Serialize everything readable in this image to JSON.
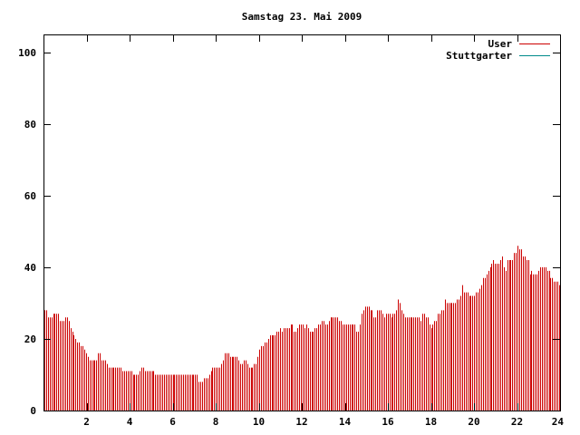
{
  "chart_data": {
    "type": "bar",
    "title": "Samstag 23. Mai 2009",
    "xlabel": "",
    "ylabel": "",
    "xlim": [
      0,
      24
    ],
    "ylim": [
      0,
      105
    ],
    "x_ticks": [
      2,
      4,
      6,
      8,
      10,
      12,
      14,
      16,
      18,
      20,
      22,
      24
    ],
    "y_ticks": [
      0,
      20,
      40,
      60,
      80,
      100
    ],
    "grid": false,
    "legend_position": "top-right",
    "series": [
      {
        "name": "User",
        "color": "#cc0000",
        "values": [
          28,
          28,
          26,
          26,
          26,
          27,
          27,
          27,
          27,
          25,
          25,
          25,
          26,
          26,
          25,
          23,
          22,
          21,
          20,
          19,
          19,
          18,
          18,
          17,
          16,
          15,
          14,
          14,
          14,
          14,
          14,
          16,
          16,
          14,
          14,
          14,
          13,
          12,
          12,
          12,
          12,
          12,
          12,
          12,
          12,
          11,
          11,
          11,
          11,
          11,
          11,
          10,
          10,
          10,
          10,
          11,
          12,
          12,
          11,
          11,
          11,
          11,
          11,
          11,
          10,
          10,
          10,
          10,
          10,
          10,
          10,
          10,
          10,
          10,
          10,
          10,
          10,
          10,
          10,
          10,
          10,
          10,
          10,
          10,
          10,
          10,
          10,
          10,
          10,
          8,
          8,
          8,
          9,
          9,
          9,
          10,
          11,
          12,
          12,
          12,
          12,
          12,
          13,
          14,
          16,
          16,
          16,
          15,
          15,
          15,
          15,
          15,
          14,
          13,
          13,
          14,
          14,
          13,
          12,
          12,
          12,
          13,
          13,
          15,
          17,
          18,
          18,
          19,
          19,
          20,
          21,
          21,
          21,
          21,
          22,
          22,
          23,
          22,
          23,
          23,
          23,
          23,
          24,
          24,
          22,
          22,
          23,
          24,
          24,
          24,
          23,
          24,
          23,
          22,
          22,
          22,
          23,
          23,
          24,
          24,
          25,
          25,
          24,
          24,
          25,
          26,
          26,
          26,
          26,
          26,
          25,
          25,
          24,
          24,
          24,
          24,
          24,
          24,
          24,
          24,
          22,
          22,
          24,
          27,
          28,
          29,
          29,
          29,
          28,
          28,
          26,
          26,
          28,
          28,
          28,
          27,
          26,
          27,
          27,
          27,
          26,
          27,
          27,
          28,
          31,
          30,
          28,
          27,
          26,
          26,
          26,
          26,
          26,
          26,
          26,
          26,
          26,
          25,
          27,
          27,
          26,
          26,
          24,
          23,
          24,
          25,
          25,
          27,
          27,
          28,
          28,
          31,
          30,
          30,
          30,
          30,
          30,
          30,
          31,
          31,
          32,
          35,
          33,
          33,
          33,
          32,
          32,
          32,
          32,
          33,
          33,
          34,
          35,
          37,
          37,
          38,
          39,
          40,
          41,
          42,
          41,
          41,
          41,
          42,
          43,
          40,
          39,
          42,
          42,
          42,
          42,
          44,
          44,
          46,
          45,
          45,
          43,
          43,
          42,
          42,
          38,
          39,
          38,
          38,
          38,
          39,
          40,
          40,
          40,
          40,
          39,
          39,
          37,
          37,
          36,
          36,
          36,
          35
        ]
      },
      {
        "name": "Stuttgarter",
        "color": "#008b8b",
        "values": []
      }
    ]
  }
}
